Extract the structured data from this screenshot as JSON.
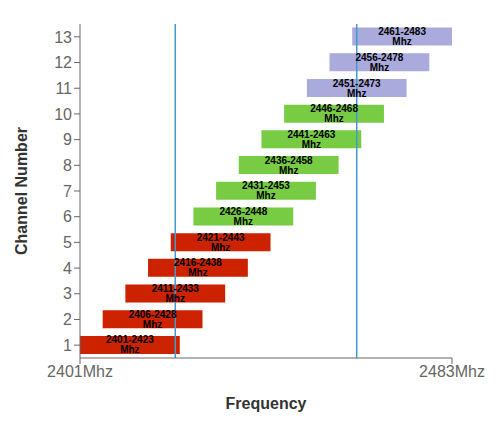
{
  "chart_data": {
    "type": "bar",
    "orientation": "horizontal",
    "x_label": "Frequency",
    "y_label": "Channel Number",
    "categories": [
      1,
      2,
      3,
      4,
      5,
      6,
      7,
      8,
      9,
      10,
      11,
      12,
      13
    ],
    "starts": [
      2401,
      2406,
      2411,
      2416,
      2421,
      2426,
      2431,
      2436,
      2441,
      2446,
      2451,
      2456,
      2461
    ],
    "ends": [
      2423,
      2428,
      2433,
      2438,
      2443,
      2448,
      2453,
      2458,
      2463,
      2468,
      2473,
      2478,
      2483
    ],
    "data_labels": true,
    "value_labels": [
      "2401-2423 Mhz",
      "2406-2428 Mhz",
      "2411-2433 Mhz",
      "2416-2438 Mhz",
      "2421-2443 Mhz",
      "2426-2448 Mhz",
      "2431-2453 Mhz",
      "2436-2458 Mhz",
      "2441-2463 Mhz",
      "2446-2468 Mhz",
      "2451-2473 Mhz",
      "2456-2478 Mhz",
      "2461-2483 Mhz"
    ],
    "colors": [
      "#CC2200",
      "#CC2200",
      "#CC2200",
      "#CC2200",
      "#CC2200",
      "#77CC44",
      "#77CC44",
      "#77CC44",
      "#77CC44",
      "#77CC44",
      "#AAAADD",
      "#AAAADD",
      "#AAAADD"
    ],
    "vlines": {
      "values": [
        2422,
        2462
      ],
      "color": "#4499CC"
    },
    "xlim": [
      2401,
      2483
    ],
    "xticks": [
      {
        "value": 2401,
        "label": "2401Mhz"
      },
      {
        "value": 2483,
        "label": "2483Mhz"
      }
    ],
    "grid": false
  }
}
